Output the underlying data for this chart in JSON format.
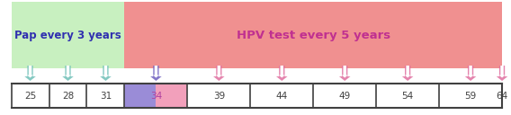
{
  "fig_width": 5.68,
  "fig_height": 1.28,
  "dpi": 100,
  "background": "#ffffff",
  "pap_box_color": "#c8f0c0",
  "pap_label": "Pap every 3 years",
  "pap_label_color": "#3030b0",
  "pap_label_fontsize": 8.5,
  "hpv_box_color": "#f09090",
  "hpv_label": "HPV test every 5 years",
  "hpv_label_color": "#c03090",
  "hpv_label_fontsize": 9.5,
  "timeline_color": "#404040",
  "ages": [
    25,
    28,
    31,
    34,
    39,
    44,
    49,
    54,
    59,
    64
  ],
  "pap_ages": [
    25,
    28,
    31
  ],
  "hpv_ages": [
    34,
    39,
    44,
    49,
    54,
    59,
    64
  ],
  "pap_arrow_color": "#70c0b8",
  "hpv_arrow_color": "#e070a0",
  "age34_arrow_color": "#7060c0",
  "age34_left_color": "#8878d0",
  "age34_right_color": "#f090b0",
  "tick_label_color": "#404040",
  "age34_label_color": "#b040a0",
  "tick_fontsize": 7.5,
  "age_min": 25,
  "age_max": 64
}
